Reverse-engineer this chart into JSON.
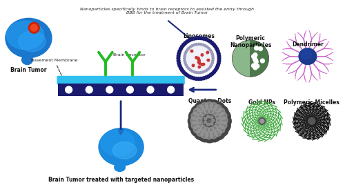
{
  "title_text": "Nanoparticles specifically binds to brain receptors to assisted the entry through\nBBB for the treatment of Brain Tumor",
  "bottom_label": "Brain Tumor treated with targeted nanoparticles",
  "brain_tumor_label": "Brain Tumor",
  "basement_label": "Basement Membrane",
  "receptor_label": "Brain Receptor",
  "nanocarrier_labels": [
    "Liposomes",
    "Polymeric\nNanoparticles",
    "Dendrimer",
    "Quantum Dots",
    "Gold NPs",
    "Polymeric Micelles"
  ],
  "bg_color": "#ffffff",
  "bbb_top_color": "#30c0f0",
  "bbb_bottom_color": "#1a1a6e",
  "arrow_color": "#1a2a7e",
  "liposome_outer_color": "#1a1a6e",
  "poly_np_light": "#8ab88a",
  "poly_np_dark": "#4a7a4a",
  "dendrimer_core_color": "#1a3a8c",
  "dendrimer_branch_color": "#cc66cc",
  "micelle_color": "#111111"
}
